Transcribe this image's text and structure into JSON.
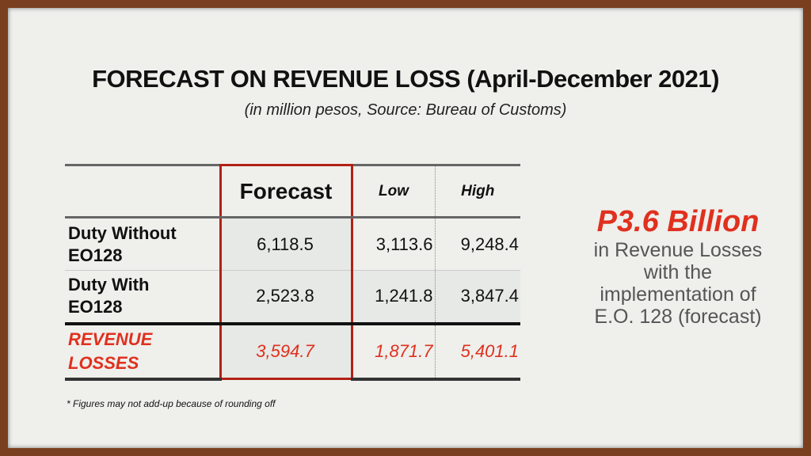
{
  "slide": {
    "title": "FORECAST ON REVENUE LOSS (April-December 2021)",
    "subtitle": "(in million pesos, Source: Bureau of Customs)",
    "footnote": "* Figures may not add-up because of rounding off"
  },
  "table": {
    "headers": [
      "",
      "Forecast",
      "Low",
      "High"
    ],
    "rows": [
      {
        "label_line1": "Duty Without",
        "label_line2": "EO128",
        "forecast": "6,118.5",
        "low": "3,113.6",
        "high": "9,248.4"
      },
      {
        "label_line1": "Duty With",
        "label_line2": "EO128",
        "forecast": "2,523.8",
        "low": "1,241.8",
        "high": "3,847.4"
      }
    ],
    "total": {
      "label_line1": "REVENUE",
      "label_line2": "LOSSES",
      "forecast": "3,594.7",
      "low": "1,871.7",
      "high": "5,401.1"
    }
  },
  "callout": {
    "headline": "P3.6 Billion",
    "line1": "in Revenue Losses",
    "line2": "with the",
    "line3": "implementation of",
    "line4": "E.O. 128  (forecast)"
  },
  "colors": {
    "accent_red": "#e0301e",
    "frame_brown": "#7a3f1f",
    "background": "#efefec"
  }
}
